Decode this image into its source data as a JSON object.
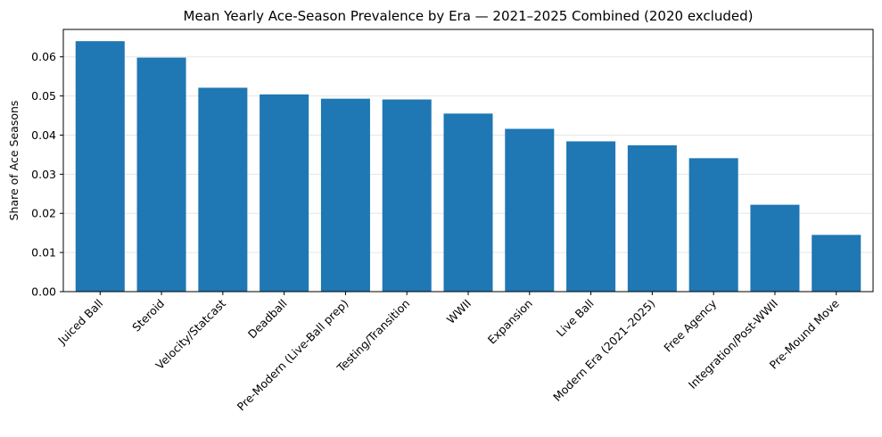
{
  "chart_data": {
    "type": "bar",
    "title": "Mean Yearly Ace-Season Prevalence by Era — 2021–2025 Combined (2020 excluded)",
    "xlabel": "",
    "ylabel": "Share of Ace Seasons",
    "ylim": [
      0,
      0.067
    ],
    "yticks": [
      0.0,
      0.01,
      0.02,
      0.03,
      0.04,
      0.05,
      0.06
    ],
    "ytick_labels": [
      "0.00",
      "0.01",
      "0.02",
      "0.03",
      "0.04",
      "0.05",
      "0.06"
    ],
    "grid": "y",
    "bar_color": "#1f77b4",
    "categories": [
      "Juiced Ball",
      "Steroid",
      "Velocity/Statcast",
      "Deadball",
      "Pre-Modern (Live-Ball prep)",
      "Testing/Transition",
      "WWII",
      "Expansion",
      "Live Ball",
      "Modern Era (2021–2025)",
      "Free Agency",
      "Integration/Post-WWII",
      "Pre-Mound Move"
    ],
    "values": [
      0.064,
      0.0598,
      0.0521,
      0.0504,
      0.0493,
      0.0491,
      0.0455,
      0.0416,
      0.0384,
      0.0374,
      0.0341,
      0.0222,
      0.0145
    ]
  }
}
